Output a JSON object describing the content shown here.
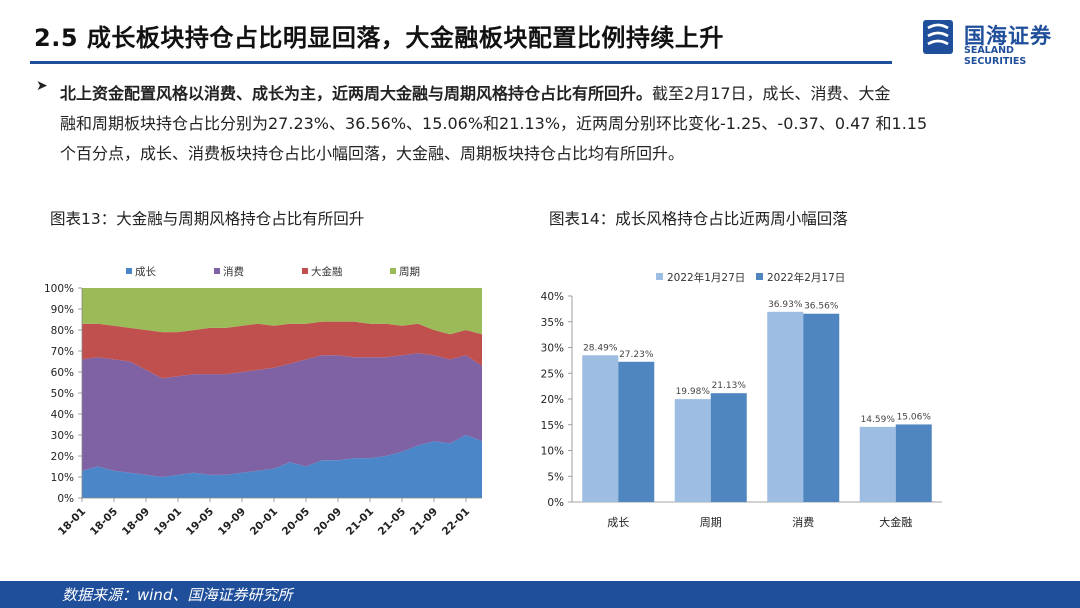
{
  "header": {
    "title": "2.5 成长板块持仓占比明显回落，大金融板块配置比例持续上升",
    "logo_cn": "国海证券",
    "logo_en": "SEALAND SECURITIES",
    "brand_color": "#1f4e9a"
  },
  "summary": {
    "bullet_icon": "arrow-right-icon",
    "bold_text": "北上资金配置风格以消费、成长为主，近两周大金融与周期风格持仓占比有所回升。",
    "line1_rest": "截至2月17日，成长、消费、大金",
    "line2": "融和周期板块持仓占比分别为27.23%、36.56%、15.06%和21.13%，近两周分别环比变化-1.25、-0.37、0.47 和1.15",
    "line3": "个百分点，成长、消费板块持仓占比小幅回落，大金融、周期板块持仓占比均有所回升。"
  },
  "chart_left_caption": "图表13：大金融与周期风格持仓占比有所回升",
  "chart_right_caption": "图表14：成长风格持仓占比近两周小幅回落",
  "footer": {
    "source": "数据来源：wind、国海证券研究所"
  },
  "chart_data": [
    {
      "type": "area",
      "stacked": true,
      "x": [
        "18-01",
        "18-03",
        "18-05",
        "18-07",
        "18-09",
        "18-11",
        "19-01",
        "19-03",
        "19-05",
        "19-07",
        "19-09",
        "19-11",
        "20-01",
        "20-03",
        "20-05",
        "20-07",
        "20-09",
        "20-11",
        "21-01",
        "21-03",
        "21-05",
        "21-07",
        "21-09",
        "21-11",
        "22-01",
        "22-02"
      ],
      "x_tick_labels": [
        "18-01",
        "18-05",
        "18-09",
        "19-01",
        "19-05",
        "19-09",
        "20-01",
        "20-05",
        "20-09",
        "21-01",
        "21-05",
        "21-09",
        "22-01"
      ],
      "series": [
        {
          "name": "成长",
          "color": "#4a86c8",
          "values": [
            13,
            15,
            13,
            12,
            11,
            10,
            11,
            12,
            11,
            11,
            12,
            13,
            14,
            17,
            15,
            18,
            18,
            19,
            19,
            20,
            22,
            25,
            27,
            26,
            30,
            27
          ]
        },
        {
          "name": "消费",
          "color": "#7e62a3",
          "values": [
            53,
            52,
            53,
            53,
            50,
            47,
            47,
            47,
            48,
            48,
            48,
            48,
            48,
            47,
            51,
            50,
            50,
            48,
            48,
            47,
            46,
            44,
            41,
            40,
            38,
            36
          ]
        },
        {
          "name": "大金融",
          "color": "#c0504d",
          "values": [
            17,
            16,
            16,
            16,
            19,
            22,
            21,
            21,
            22,
            22,
            22,
            22,
            20,
            19,
            17,
            16,
            16,
            17,
            16,
            16,
            14,
            14,
            12,
            12,
            12,
            15
          ]
        },
        {
          "name": "周期",
          "color": "#9bbb59",
          "values": [
            17,
            17,
            18,
            19,
            20,
            21,
            21,
            20,
            19,
            19,
            18,
            17,
            18,
            17,
            17,
            16,
            16,
            16,
            17,
            17,
            18,
            17,
            20,
            22,
            20,
            22
          ]
        }
      ],
      "ylim": [
        0,
        100
      ],
      "y_tick_labels": [
        "0%",
        "10%",
        "20%",
        "30%",
        "40%",
        "50%",
        "60%",
        "70%",
        "80%",
        "90%",
        "100%"
      ],
      "legend_position": "top"
    },
    {
      "type": "bar",
      "categories": [
        "成长",
        "周期",
        "消费",
        "大金融"
      ],
      "series": [
        {
          "name": "2022年1月27日",
          "color": "#9dbde2",
          "values": [
            28.49,
            19.98,
            36.93,
            14.59
          ],
          "labels": [
            "28.49%",
            "19.98%",
            "36.93%",
            "14.59%"
          ]
        },
        {
          "name": "2022年2月17日",
          "color": "#4f86bf",
          "values": [
            27.23,
            21.13,
            36.56,
            15.06
          ],
          "labels": [
            "27.23%",
            "21.13%",
            "36.56%",
            "15.06%"
          ]
        }
      ],
      "ylim": [
        0,
        40
      ],
      "y_tick_labels": [
        "0%",
        "5%",
        "10%",
        "15%",
        "20%",
        "25%",
        "30%",
        "35%",
        "40%"
      ],
      "legend_position": "top"
    }
  ]
}
